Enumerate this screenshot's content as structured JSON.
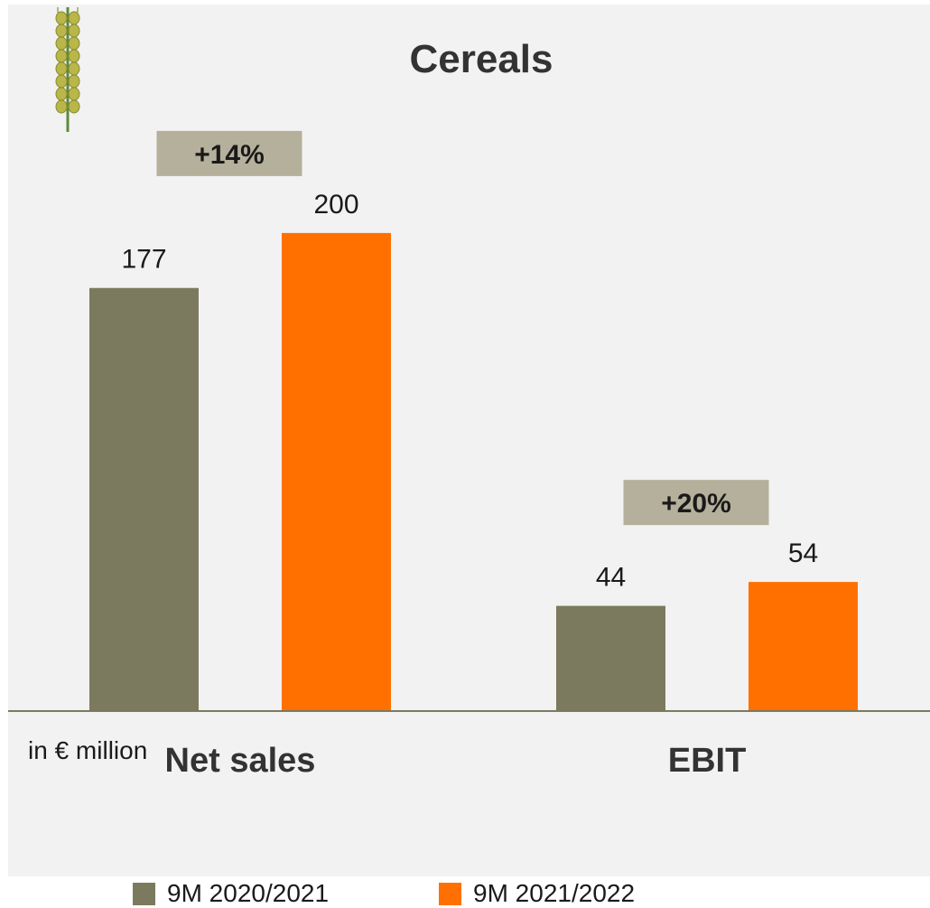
{
  "chart_data": {
    "type": "bar",
    "title": "Cereals",
    "categories": [
      "Net sales",
      "EBIT"
    ],
    "series": [
      {
        "name": "9M 2020/2021",
        "values": [
          177,
          44
        ]
      },
      {
        "name": "9M 2021/2022",
        "values": [
          200,
          54
        ]
      }
    ],
    "growth_labels": [
      "+14%",
      "+20%"
    ],
    "unit_note": "in € million",
    "ylim": [
      0,
      237
    ],
    "grid": false,
    "legend_position": "bottom",
    "colors": {
      "series": [
        "#7b7a5f",
        "#ff7000"
      ],
      "growth_box": "#b5b09b",
      "baseline": "#7b7a5f",
      "panel_background": "#f2f2f2"
    },
    "logo_icon": "wheat-ear-icon"
  }
}
